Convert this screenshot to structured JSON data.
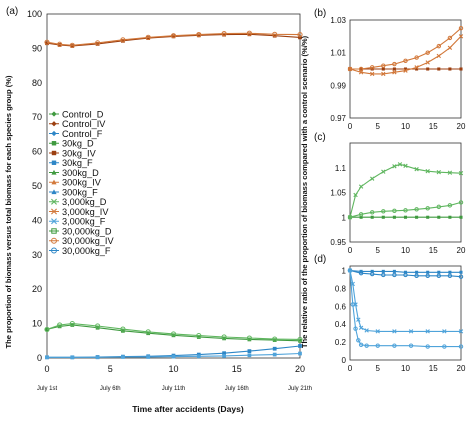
{
  "chart_data": [
    {
      "id": "a",
      "panel_label": "(a)",
      "type": "line",
      "ylabel": "The proportion of biomass versus total biomass for each species group (%)",
      "xlabel": "Time after accidents (Days)",
      "xticklabels": [
        "0",
        "5",
        "10",
        "15",
        "20"
      ],
      "xdates": [
        "July 1st",
        "July 6th",
        "July 11th",
        "July 16th",
        "July 21th"
      ],
      "xlim": [
        0,
        20
      ],
      "ylim": [
        0,
        100
      ],
      "yticks": [
        0,
        10,
        20,
        30,
        40,
        50,
        60,
        70,
        80,
        90,
        100
      ],
      "legend_position": "left-middle",
      "legend": [
        {
          "label": "Control_D",
          "color": "#3f9a3f",
          "marker": "diamond-filled"
        },
        {
          "label": "Control_IV",
          "color": "#9c3f10",
          "marker": "diamond-filled"
        },
        {
          "label": "Control_F",
          "color": "#2d86c6",
          "marker": "diamond-filled"
        },
        {
          "label": "30kg_D",
          "color": "#3f9a3f",
          "marker": "square-filled"
        },
        {
          "label": "30kg_IV",
          "color": "#9c3f10",
          "marker": "square-filled"
        },
        {
          "label": "30kg_F",
          "color": "#2d86c6",
          "marker": "square-filled"
        },
        {
          "label": "300kg_D",
          "color": "#3f9a3f",
          "marker": "triangle"
        },
        {
          "label": "300kg_IV",
          "color": "#d2783a",
          "marker": "triangle"
        },
        {
          "label": "300kg_F",
          "color": "#2d86c6",
          "marker": "triangle"
        },
        {
          "label": "3,000kg_D",
          "color": "#5fb65f",
          "marker": "x"
        },
        {
          "label": "3,000kg_IV",
          "color": "#d2783a",
          "marker": "x"
        },
        {
          "label": "3,000kg_F",
          "color": "#4fa3da",
          "marker": "x"
        },
        {
          "label": "30,000kg_D",
          "color": "#3f9a3f",
          "marker": "square-open"
        },
        {
          "label": "30,000kg_IV",
          "color": "#d2783a",
          "marker": "circle-open"
        },
        {
          "label": "30,000kg_F",
          "color": "#2d86c6",
          "marker": "circle-open"
        }
      ],
      "series": [
        {
          "group": "IV",
          "color": "#9c3f10",
          "x": [
            0,
            1,
            2,
            4,
            6,
            8,
            10,
            12,
            14,
            16,
            18,
            20
          ],
          "values": [
            91.5,
            91.0,
            90.7,
            91.3,
            92.2,
            93.0,
            93.5,
            93.8,
            94.0,
            94.1,
            93.7,
            93.2
          ]
        },
        {
          "group": "IV",
          "color": "#d2783a",
          "x": [
            0,
            1,
            2,
            4,
            6,
            8,
            10,
            12,
            14,
            16,
            18,
            20
          ],
          "values": [
            91.8,
            91.2,
            90.9,
            91.6,
            92.5,
            93.2,
            93.7,
            94.0,
            94.3,
            94.4,
            94.1,
            94.0
          ]
        },
        {
          "group": "D",
          "color": "#3f9a3f",
          "x": [
            0,
            1,
            2,
            4,
            6,
            8,
            10,
            12,
            14,
            16,
            18,
            20
          ],
          "values": [
            8.3,
            9.2,
            9.6,
            8.8,
            7.9,
            7.2,
            6.6,
            6.1,
            5.7,
            5.4,
            5.2,
            5.0
          ]
        },
        {
          "group": "D",
          "color": "#5fb65f",
          "x": [
            0,
            1,
            2,
            4,
            6,
            8,
            10,
            12,
            14,
            16,
            18,
            20
          ],
          "values": [
            8.3,
            9.6,
            10.0,
            9.3,
            8.4,
            7.6,
            7.0,
            6.5,
            6.1,
            5.8,
            5.5,
            5.4
          ]
        },
        {
          "group": "F",
          "color": "#2d86c6",
          "x": [
            0,
            2,
            4,
            6,
            8,
            10,
            12,
            14,
            16,
            18,
            20
          ],
          "values": [
            0.2,
            0.2,
            0.3,
            0.4,
            0.5,
            0.7,
            1.0,
            1.4,
            2.0,
            2.7,
            3.5
          ]
        },
        {
          "group": "F",
          "color": "#4fa3da",
          "x": [
            0,
            2,
            4,
            6,
            8,
            10,
            12,
            14,
            16,
            18,
            20
          ],
          "values": [
            0.2,
            0.2,
            0.2,
            0.3,
            0.3,
            0.4,
            0.5,
            0.6,
            0.8,
            1.0,
            1.3
          ]
        }
      ]
    },
    {
      "id": "b",
      "panel_label": "(b)",
      "type": "line",
      "xlim": [
        0,
        20
      ],
      "xticks": [
        0,
        5,
        10,
        15,
        20
      ],
      "ylim": [
        0.97,
        1.03
      ],
      "yticks": [
        0.97,
        0.99,
        1.01,
        1.03
      ],
      "ytick_labels": [
        "0.97",
        "0.99",
        "1.01",
        "1.03"
      ],
      "series": [
        {
          "color": "#9c3f10",
          "x": [
            0,
            2,
            4,
            6,
            8,
            10,
            12,
            14,
            16,
            18,
            20
          ],
          "values": [
            1.0,
            1.0,
            1.0,
            1.0,
            1.0,
            1.0,
            1.0,
            1.0,
            1.0,
            1.0,
            1.0
          ]
        },
        {
          "color": "#d2783a",
          "x": [
            0,
            2,
            4,
            6,
            8,
            10,
            12,
            14,
            16,
            18,
            20
          ],
          "values": [
            1.0,
            1.0,
            1.001,
            1.002,
            1.003,
            1.005,
            1.007,
            1.01,
            1.014,
            1.019,
            1.025
          ]
        },
        {
          "color": "#d2783a",
          "x": [
            0,
            2,
            4,
            6,
            8,
            10,
            12,
            14,
            16,
            18,
            20
          ],
          "values": [
            1.0,
            0.998,
            0.997,
            0.997,
            0.998,
            0.999,
            1.001,
            1.004,
            1.008,
            1.013,
            1.02
          ]
        }
      ]
    },
    {
      "id": "c",
      "panel_label": "(c)",
      "type": "line",
      "xlim": [
        0,
        20
      ],
      "xticks": [
        0,
        5,
        10,
        15,
        20
      ],
      "ylim": [
        0.95,
        1.15
      ],
      "yticks": [
        0.95,
        1.0,
        1.05,
        1.1,
        1.15
      ],
      "ytick_labels": [
        "0.95",
        "1",
        "1.05",
        "1.1",
        ""
      ],
      "series": [
        {
          "color": "#3f9a3f",
          "x": [
            0,
            2,
            4,
            6,
            8,
            10,
            12,
            14,
            16,
            18,
            20
          ],
          "values": [
            1.0,
            1.0,
            1.0,
            1.0,
            1.0,
            1.0,
            1.0,
            1.0,
            1.0,
            1.0,
            1.0
          ]
        },
        {
          "color": "#5fb65f",
          "x": [
            0,
            2,
            4,
            6,
            8,
            10,
            12,
            14,
            16,
            18,
            20
          ],
          "values": [
            1.0,
            1.006,
            1.01,
            1.012,
            1.013,
            1.014,
            1.016,
            1.018,
            1.021,
            1.024,
            1.03
          ]
        },
        {
          "color": "#5fb65f",
          "x": [
            0,
            1,
            2,
            4,
            6,
            8,
            9,
            10,
            12,
            14,
            16,
            18,
            20
          ],
          "values": [
            1.0,
            1.045,
            1.062,
            1.078,
            1.092,
            1.103,
            1.107,
            1.104,
            1.097,
            1.093,
            1.091,
            1.09,
            1.089
          ]
        }
      ]
    },
    {
      "id": "d",
      "panel_label": "(d)",
      "type": "line",
      "xlim": [
        0,
        20
      ],
      "xticks": [
        0,
        5,
        10,
        15,
        20
      ],
      "ylim": [
        0,
        1.05
      ],
      "yticks": [
        0,
        0.2,
        0.4,
        0.6,
        0.8,
        1.0
      ],
      "ytick_labels": [
        "0",
        "0.2",
        "0.4",
        "0.6",
        "0.8",
        "1"
      ],
      "series": [
        {
          "color": "#2d86c6",
          "x": [
            0,
            2,
            4,
            6,
            8,
            10,
            12,
            14,
            16,
            18,
            20
          ],
          "values": [
            1.0,
            0.99,
            0.99,
            0.99,
            0.99,
            0.98,
            0.98,
            0.98,
            0.98,
            0.98,
            0.98
          ]
        },
        {
          "color": "#2d86c6",
          "x": [
            0,
            2,
            4,
            6,
            8,
            10,
            12,
            14,
            16,
            18,
            20
          ],
          "values": [
            1.0,
            0.97,
            0.96,
            0.95,
            0.95,
            0.95,
            0.94,
            0.94,
            0.94,
            0.94,
            0.93
          ]
        },
        {
          "color": "#4fa3da",
          "x": [
            0,
            0.5,
            1,
            1.5,
            2,
            3,
            5,
            8,
            11,
            14,
            17,
            20
          ],
          "values": [
            1.0,
            0.85,
            0.62,
            0.45,
            0.36,
            0.33,
            0.32,
            0.32,
            0.32,
            0.32,
            0.32,
            0.32
          ]
        },
        {
          "color": "#4fa3da",
          "x": [
            0,
            0.5,
            1,
            1.5,
            2,
            3,
            5,
            8,
            11,
            14,
            17,
            20
          ],
          "values": [
            1.0,
            0.62,
            0.35,
            0.22,
            0.17,
            0.16,
            0.16,
            0.16,
            0.16,
            0.15,
            0.15,
            0.15
          ]
        }
      ]
    }
  ],
  "right_ylabel": "The relative ratio of the proportion of biomass compared with a control scenario (%/%)"
}
